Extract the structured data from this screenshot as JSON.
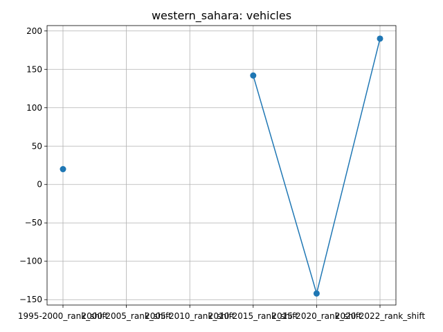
{
  "chart_data": {
    "type": "line",
    "title": "western_sahara: vehicles",
    "xlabel": "",
    "ylabel": "",
    "categories": [
      "1995-2000_rank_shift",
      "2000-2005_rank_shift",
      "2005-2010_rank_shift",
      "2010-2015_rank_shift",
      "2015-2020_rank_shift",
      "2020-2022_rank_shift"
    ],
    "series": [
      {
        "values": [
          20,
          null,
          null,
          142,
          -142,
          190
        ],
        "color": "#1f77b4"
      }
    ],
    "ylim": [
      -157,
      207
    ],
    "yticks": [
      -150,
      -100,
      -50,
      0,
      50,
      100,
      150,
      200
    ],
    "grid": true,
    "legend": "none"
  }
}
